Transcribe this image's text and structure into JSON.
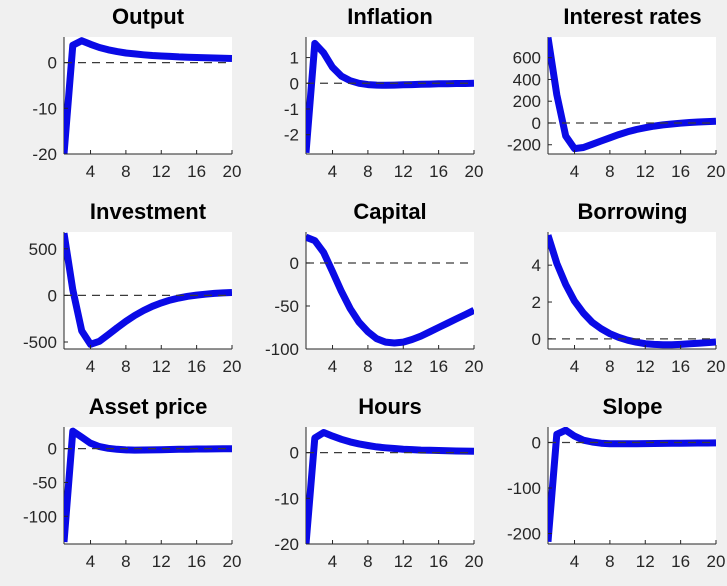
{
  "figure": {
    "background": "#f0f0f0",
    "plot_background": "#ffffff",
    "line_color": "#0a0ae6",
    "zero_line_color": "#3a3a3a",
    "axis_color": "#262626",
    "text_color": "#262626",
    "tick_font_size": 17
  },
  "chart_data": [
    {
      "type": "line",
      "title": "Output",
      "x": [
        1,
        2,
        3,
        4,
        5,
        6,
        7,
        8,
        9,
        10,
        11,
        12,
        13,
        14,
        15,
        16,
        17,
        18,
        19,
        20
      ],
      "values": [
        -20,
        3.8,
        4.8,
        4.0,
        3.3,
        2.8,
        2.4,
        2.1,
        1.9,
        1.7,
        1.55,
        1.45,
        1.35,
        1.25,
        1.18,
        1.12,
        1.06,
        1.0,
        0.95,
        0.9
      ],
      "xlim": [
        1,
        20
      ],
      "ylim": [
        -20,
        5.6
      ],
      "xticks": [
        4,
        8,
        12,
        16,
        20
      ],
      "yticks": [
        -20,
        -10,
        0
      ],
      "zero_line": true,
      "grid": false,
      "legend": null
    },
    {
      "type": "line",
      "title": "Inflation",
      "x": [
        1,
        2,
        3,
        4,
        5,
        6,
        7,
        8,
        9,
        10,
        11,
        12,
        13,
        14,
        15,
        16,
        17,
        18,
        19,
        20
      ],
      "values": [
        -2.7,
        1.55,
        1.18,
        0.62,
        0.28,
        0.1,
        0.0,
        -0.05,
        -0.07,
        -0.08,
        -0.07,
        -0.06,
        -0.05,
        -0.04,
        -0.03,
        -0.02,
        -0.02,
        -0.01,
        -0.01,
        0.0
      ],
      "xlim": [
        1,
        20
      ],
      "ylim": [
        -2.75,
        1.8
      ],
      "xticks": [
        4,
        8,
        12,
        16,
        20
      ],
      "yticks": [
        -2,
        -1,
        0,
        1
      ],
      "zero_line": true,
      "grid": false,
      "legend": null
    },
    {
      "type": "line",
      "title": "Interest rates",
      "x": [
        1,
        2,
        3,
        4,
        5,
        6,
        7,
        8,
        9,
        10,
        11,
        12,
        13,
        14,
        15,
        16,
        17,
        18,
        19,
        20
      ],
      "values": [
        785,
        260,
        -120,
        -235,
        -225,
        -196,
        -166,
        -136,
        -107,
        -81,
        -60,
        -43,
        -29,
        -18,
        -9,
        -2,
        4,
        9,
        13,
        16
      ],
      "xlim": [
        1,
        20
      ],
      "ylim": [
        -285,
        790
      ],
      "xticks": [
        4,
        8,
        12,
        16,
        20
      ],
      "yticks": [
        -200,
        0,
        200,
        400,
        600
      ],
      "zero_line": true,
      "grid": false,
      "legend": null
    },
    {
      "type": "line",
      "title": "Investment",
      "x": [
        1,
        2,
        3,
        4,
        5,
        6,
        7,
        8,
        9,
        10,
        11,
        12,
        13,
        14,
        15,
        16,
        17,
        18,
        19,
        20
      ],
      "values": [
        668,
        60,
        -380,
        -525,
        -492,
        -422,
        -348,
        -278,
        -216,
        -162,
        -117,
        -80,
        -51,
        -28,
        -10,
        3,
        13,
        21,
        27,
        31
      ],
      "xlim": [
        1,
        20
      ],
      "ylim": [
        -575,
        680
      ],
      "xticks": [
        4,
        8,
        12,
        16,
        20
      ],
      "yticks": [
        -500,
        0,
        500
      ],
      "zero_line": true,
      "grid": false,
      "legend": null
    },
    {
      "type": "line",
      "title": "Capital",
      "x": [
        1,
        2,
        3,
        4,
        5,
        6,
        7,
        8,
        9,
        10,
        11,
        12,
        13,
        14,
        15,
        16,
        17,
        18,
        19,
        20
      ],
      "values": [
        30,
        26,
        12,
        -10,
        -33,
        -53,
        -69,
        -80,
        -88,
        -92,
        -93,
        -92,
        -89,
        -85,
        -80,
        -75,
        -70,
        -65,
        -60,
        -55
      ],
      "xlim": [
        1,
        20
      ],
      "ylim": [
        -100,
        36
      ],
      "xticks": [
        4,
        8,
        12,
        16,
        20
      ],
      "yticks": [
        -100,
        -50,
        0
      ],
      "zero_line": true,
      "grid": false,
      "legend": null
    },
    {
      "type": "line",
      "title": "Borrowing",
      "x": [
        1,
        2,
        3,
        4,
        5,
        6,
        7,
        8,
        9,
        10,
        11,
        12,
        13,
        14,
        15,
        16,
        17,
        18,
        19,
        20
      ],
      "values": [
        5.62,
        4.1,
        2.95,
        2.05,
        1.4,
        0.9,
        0.55,
        0.28,
        0.08,
        -0.07,
        -0.18,
        -0.26,
        -0.3,
        -0.32,
        -0.32,
        -0.3,
        -0.27,
        -0.24,
        -0.2,
        -0.17
      ],
      "xlim": [
        1,
        20
      ],
      "ylim": [
        -0.55,
        5.8
      ],
      "xticks": [
        4,
        8,
        12,
        16,
        20
      ],
      "yticks": [
        0,
        2,
        4
      ],
      "zero_line": true,
      "grid": false,
      "legend": null
    },
    {
      "type": "line",
      "title": "Asset price",
      "x": [
        1,
        2,
        3,
        4,
        5,
        6,
        7,
        8,
        9,
        10,
        11,
        12,
        13,
        14,
        15,
        16,
        17,
        18,
        19,
        20
      ],
      "values": [
        -138,
        26,
        17,
        8,
        3,
        0.5,
        -1,
        -1.8,
        -2.1,
        -2,
        -1.8,
        -1.5,
        -1.2,
        -1,
        -0.8,
        -0.6,
        -0.5,
        -0.4,
        -0.3,
        -0.2
      ],
      "xlim": [
        1,
        20
      ],
      "ylim": [
        -141,
        32
      ],
      "xticks": [
        4,
        8,
        12,
        16,
        20
      ],
      "yticks": [
        -100,
        -50,
        0
      ],
      "zero_line": true,
      "grid": false,
      "legend": null
    },
    {
      "type": "line",
      "title": "Hours",
      "x": [
        1,
        2,
        3,
        4,
        5,
        6,
        7,
        8,
        9,
        10,
        11,
        12,
        13,
        14,
        15,
        16,
        17,
        18,
        19,
        20
      ],
      "values": [
        -20,
        3.2,
        4.4,
        3.6,
        2.9,
        2.35,
        1.9,
        1.55,
        1.25,
        1.05,
        0.9,
        0.75,
        0.65,
        0.55,
        0.5,
        0.45,
        0.4,
        0.35,
        0.32,
        0.3
      ],
      "xlim": [
        1,
        20
      ],
      "ylim": [
        -20,
        5.6
      ],
      "xticks": [
        4,
        8,
        12,
        16,
        20
      ],
      "yticks": [
        -20,
        -10,
        0
      ],
      "zero_line": true,
      "grid": false,
      "legend": null
    },
    {
      "type": "line",
      "title": "Slope",
      "x": [
        1,
        2,
        3,
        4,
        5,
        6,
        7,
        8,
        9,
        10,
        11,
        12,
        13,
        14,
        15,
        16,
        17,
        18,
        19,
        20
      ],
      "values": [
        -218,
        18,
        27,
        14,
        5,
        1,
        -1.5,
        -2.6,
        -3,
        -3,
        -2.8,
        -2.5,
        -2.2,
        -2,
        -1.8,
        -1.6,
        -1.4,
        -1.2,
        -1.1,
        -1.0
      ],
      "xlim": [
        1,
        20
      ],
      "ylim": [
        -223,
        34
      ],
      "xticks": [
        4,
        8,
        12,
        16,
        20
      ],
      "yticks": [
        -200,
        -100,
        0
      ],
      "zero_line": true,
      "grid": false,
      "legend": null
    }
  ]
}
